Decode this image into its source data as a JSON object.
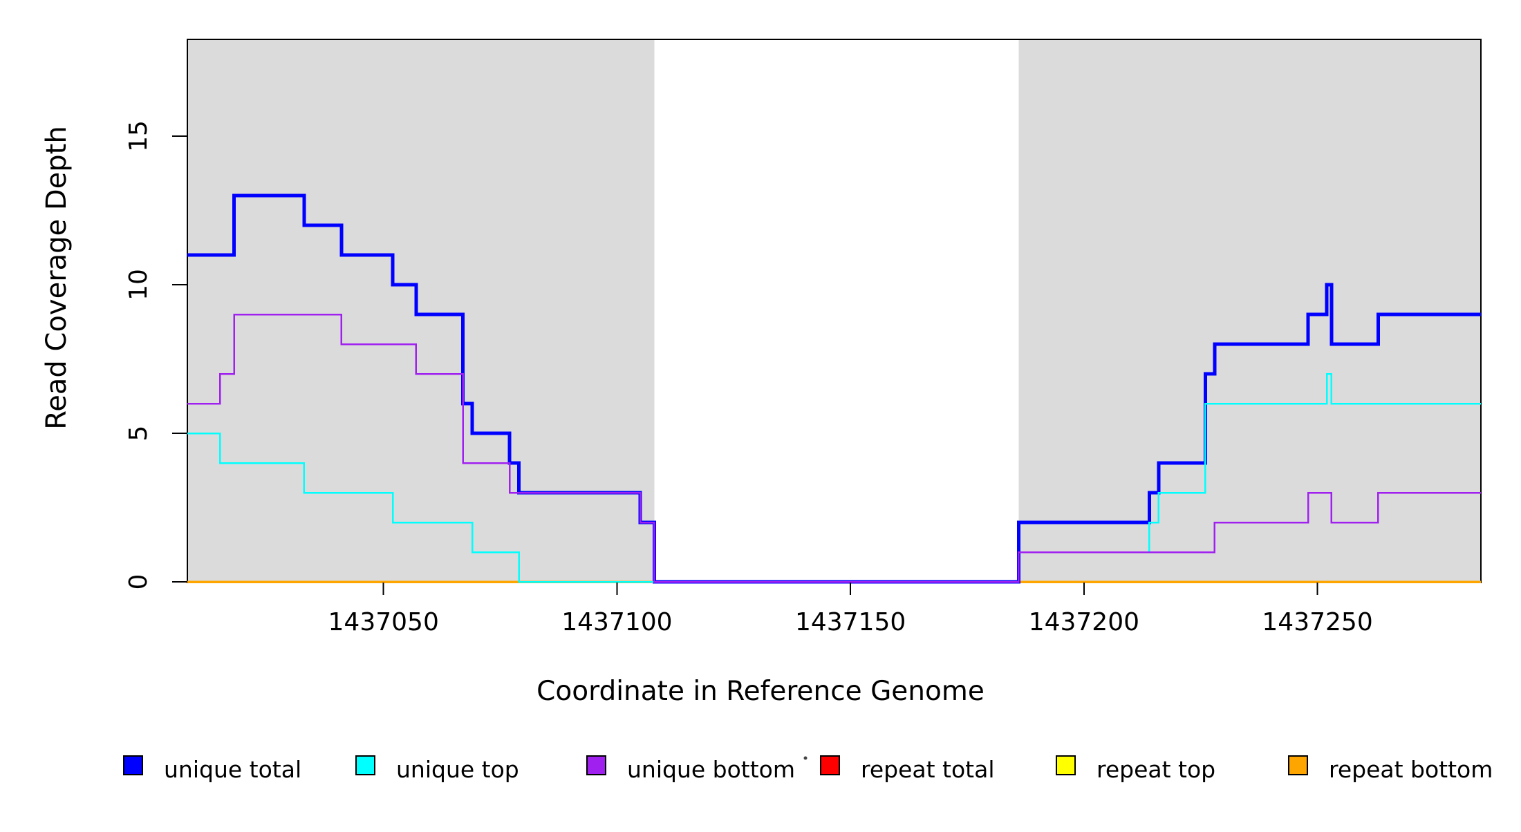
{
  "chart_data": {
    "type": "line",
    "subtype": "step-coverage",
    "title": "",
    "xlabel": "Coordinate in Reference Genome",
    "ylabel": "Read Coverage Depth",
    "x_range": [
      1437008,
      1437285
    ],
    "ylim": [
      0,
      18.3
    ],
    "x_ticks": [
      1437050,
      1437100,
      1437150,
      1437200,
      1437250
    ],
    "y_ticks": [
      0,
      5,
      10,
      15
    ],
    "grid": false,
    "background": "#FFFFFF",
    "axis_color": "#000000",
    "shade_color": "#DBDBDB",
    "shaded_regions": [
      [
        1437008,
        1437108
      ],
      [
        1437186,
        1437285
      ]
    ],
    "series": [
      {
        "name": "repeat total",
        "color": "#FF0000",
        "width": 3,
        "steps": [
          [
            1437008,
            0
          ]
        ]
      },
      {
        "name": "repeat top",
        "color": "#FFFF00",
        "width": 3,
        "steps": [
          [
            1437008,
            0
          ]
        ]
      },
      {
        "name": "repeat bottom",
        "color": "#FFA500",
        "width": 3.5,
        "steps": [
          [
            1437008,
            0
          ]
        ]
      },
      {
        "name": "unique total",
        "color": "#0000FF",
        "width": 5,
        "steps": [
          [
            1437008,
            11
          ],
          [
            1437018,
            13
          ],
          [
            1437033,
            12
          ],
          [
            1437041,
            11
          ],
          [
            1437052,
            10
          ],
          [
            1437057,
            9
          ],
          [
            1437067,
            6
          ],
          [
            1437069,
            5
          ],
          [
            1437077,
            4
          ],
          [
            1437079,
            3
          ],
          [
            1437105,
            2
          ],
          [
            1437108,
            0
          ],
          [
            1437186,
            2
          ],
          [
            1437214,
            3
          ],
          [
            1437216,
            4
          ],
          [
            1437226,
            7
          ],
          [
            1437228,
            8
          ],
          [
            1437248,
            9
          ],
          [
            1437252,
            10
          ],
          [
            1437253,
            8
          ],
          [
            1437263,
            9
          ]
        ]
      },
      {
        "name": "unique top",
        "color": "#00FFFF",
        "width": 2.5,
        "steps": [
          [
            1437008,
            5
          ],
          [
            1437015,
            4
          ],
          [
            1437033,
            3
          ],
          [
            1437052,
            2
          ],
          [
            1437069,
            1
          ],
          [
            1437079,
            0
          ],
          [
            1437186,
            1
          ],
          [
            1437214,
            2
          ],
          [
            1437216,
            3
          ],
          [
            1437226,
            6
          ],
          [
            1437252,
            7
          ],
          [
            1437253,
            6
          ]
        ]
      },
      {
        "name": "unique bottom",
        "color": "#A020F0",
        "width": 2.5,
        "steps": [
          [
            1437008,
            6
          ],
          [
            1437015,
            7
          ],
          [
            1437018,
            9
          ],
          [
            1437041,
            8
          ],
          [
            1437057,
            7
          ],
          [
            1437067,
            4
          ],
          [
            1437077,
            3
          ],
          [
            1437105,
            2
          ],
          [
            1437108,
            0
          ],
          [
            1437186,
            1
          ],
          [
            1437228,
            2
          ],
          [
            1437248,
            3
          ],
          [
            1437253,
            2
          ],
          [
            1437263,
            3
          ]
        ]
      }
    ],
    "legend": {
      "position": "bottom",
      "entries": [
        {
          "label": "unique total",
          "color": "#0000FF"
        },
        {
          "label": "unique top",
          "color": "#00FFFF"
        },
        {
          "label": "unique bottom",
          "color": "#A020F0"
        },
        {
          "label": "repeat total",
          "color": "#FF0000"
        },
        {
          "label": "repeat top",
          "color": "#FFFF00"
        },
        {
          "label": "repeat bottom",
          "color": "#FFA500"
        }
      ]
    }
  }
}
